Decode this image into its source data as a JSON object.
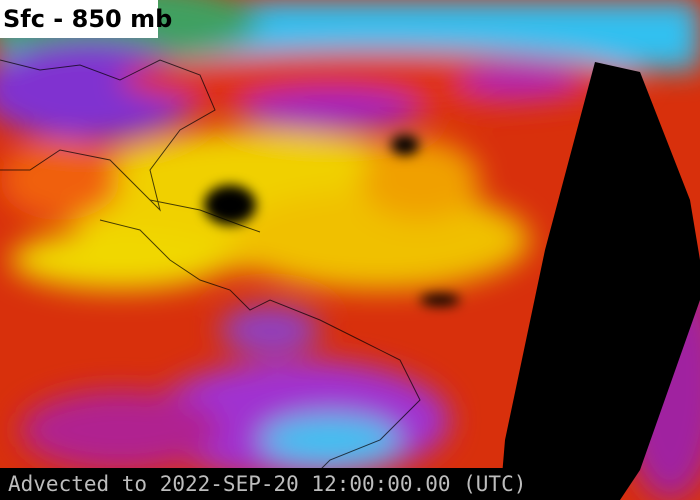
{
  "title": "Sfc - 850 mb",
  "footer": "Advected to 2022-SEP-20 12:00:00.00 (UTC)",
  "colors": {
    "background": "#d8300c",
    "moist": "#f0e000",
    "dry": "#a020c0",
    "very_dry": "#30c0f0",
    "land_north": "#40a060",
    "no_data": "#000000"
  }
}
